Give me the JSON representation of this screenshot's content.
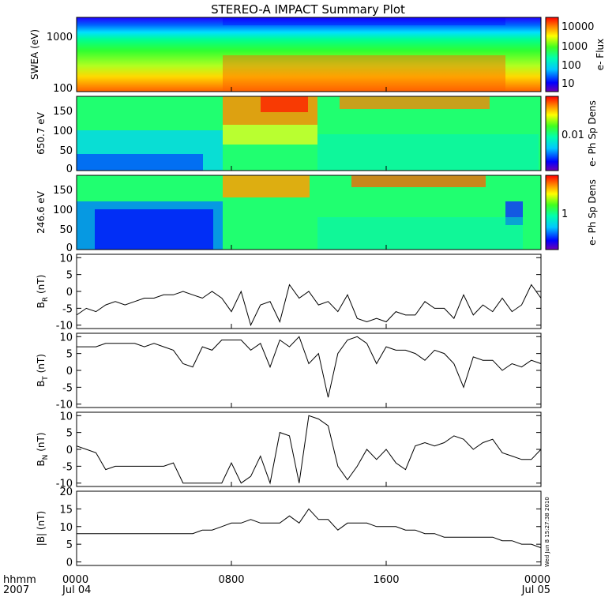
{
  "title": "STEREO-A IMPACT Summary Plot",
  "timestamp": "Wed Jun  8 15:27:38 2010",
  "x_axis": {
    "corner_labels": [
      "hhmm",
      "2007"
    ],
    "ticks": [
      {
        "hours": 0,
        "line1": "0000",
        "line2": "Jul 04"
      },
      {
        "hours": 8,
        "line1": "0800",
        "line2": ""
      },
      {
        "hours": 16,
        "line1": "1600",
        "line2": ""
      },
      {
        "hours": 24,
        "line1": "0000",
        "line2": "Jul 05"
      }
    ]
  },
  "colors": {
    "line": "#000000",
    "frame": "#000000",
    "background": "#ffffff"
  },
  "chart_data": [
    {
      "type": "heatmap",
      "ylabel": "SWEA (eV)",
      "ytick_labels": [
        "100",
        "1000"
      ],
      "y_scale": "log",
      "ylim": [
        90,
        2000
      ],
      "colorbar_label": "e- Flux",
      "colorbar_tick_labels": [
        "10",
        "100",
        "1000",
        "10000"
      ],
      "colorbar_scale": "log",
      "note": "electron energy spectrogram, jet colormap"
    },
    {
      "type": "heatmap",
      "ylabel": "650.7 eV",
      "ytick_labels": [
        "0",
        "50",
        "100",
        "150"
      ],
      "ylim": [
        -5,
        180
      ],
      "colorbar_label": "e- Ph Sp Dens",
      "colorbar_tick_labels": [
        "0.01"
      ]
    },
    {
      "type": "heatmap",
      "ylabel": "246.6 eV",
      "ytick_labels": [
        "0",
        "50",
        "100",
        "150"
      ],
      "ylim": [
        -5,
        180
      ],
      "colorbar_label": "e- Ph Sp Dens",
      "colorbar_tick_labels": [
        "1"
      ]
    },
    {
      "type": "line",
      "ylabel": "B_R (nT)",
      "ylim": [
        -11,
        11
      ],
      "yticks": [
        -10,
        -5,
        0,
        5,
        10
      ],
      "x_hours": [
        0,
        0.5,
        1,
        1.5,
        2,
        2.5,
        3,
        3.5,
        4,
        4.5,
        5,
        5.5,
        6,
        6.5,
        7,
        7.5,
        8,
        8.5,
        9,
        9.5,
        10,
        10.5,
        11,
        11.5,
        12,
        12.5,
        13,
        13.5,
        14,
        14.5,
        15,
        15.5,
        16,
        16.5,
        17,
        17.5,
        18,
        18.5,
        19,
        19.5,
        20,
        20.5,
        21,
        21.5,
        22,
        22.5,
        23,
        23.5,
        24
      ],
      "values": [
        -7,
        -5,
        -6,
        -4,
        -3,
        -4,
        -3,
        -2,
        -2,
        -1,
        -1,
        0,
        -1,
        -2,
        0,
        -2,
        -6,
        0,
        -10,
        -4,
        -3,
        -9,
        2,
        -2,
        0,
        -4,
        -3,
        -6,
        -1,
        -8,
        -9,
        -8,
        -9,
        -6,
        -7,
        -7,
        -3,
        -5,
        -5,
        -8,
        -1,
        -7,
        -4,
        -6,
        -2,
        -6,
        -4,
        2,
        -2
      ]
    },
    {
      "type": "line",
      "ylabel": "B_T (nT)",
      "ylim": [
        -11,
        11
      ],
      "yticks": [
        -10,
        -5,
        0,
        5,
        10
      ],
      "x_hours": [
        0,
        0.5,
        1,
        1.5,
        2,
        2.5,
        3,
        3.5,
        4,
        4.5,
        5,
        5.5,
        6,
        6.5,
        7,
        7.5,
        8,
        8.5,
        9,
        9.5,
        10,
        10.5,
        11,
        11.5,
        12,
        12.5,
        13,
        13.5,
        14,
        14.5,
        15,
        15.5,
        16,
        16.5,
        17,
        17.5,
        18,
        18.5,
        19,
        19.5,
        20,
        20.5,
        21,
        21.5,
        22,
        22.5,
        23,
        23.5,
        24
      ],
      "values": [
        7,
        7,
        7,
        8,
        8,
        8,
        8,
        7,
        8,
        7,
        6,
        2,
        1,
        7,
        6,
        9,
        9,
        9,
        6,
        8,
        1,
        9,
        7,
        10,
        2,
        5,
        -8,
        5,
        9,
        10,
        8,
        2,
        7,
        6,
        6,
        5,
        3,
        6,
        5,
        2,
        -5,
        4,
        3,
        3,
        0,
        2,
        1,
        3,
        2
      ]
    },
    {
      "type": "line",
      "ylabel": "B_N (nT)",
      "ylim": [
        -11,
        11
      ],
      "yticks": [
        -10,
        -5,
        0,
        5,
        10
      ],
      "x_hours": [
        0,
        0.5,
        1,
        1.5,
        2,
        2.5,
        3,
        3.5,
        4,
        4.5,
        5,
        5.5,
        6,
        6.5,
        7,
        7.5,
        8,
        8.5,
        9,
        9.5,
        10,
        10.5,
        11,
        11.5,
        12,
        12.5,
        13,
        13.5,
        14,
        14.5,
        15,
        15.5,
        16,
        16.5,
        17,
        17.5,
        18,
        18.5,
        19,
        19.5,
        20,
        20.5,
        21,
        21.5,
        22,
        22.5,
        23,
        23.5,
        24
      ],
      "values": [
        1,
        0,
        -1,
        -6,
        -5,
        -5,
        -5,
        -5,
        -5,
        -5,
        -4,
        -10,
        -10,
        -10,
        -10,
        -10,
        -4,
        -10,
        -8,
        -2,
        -10,
        5,
        4,
        -10,
        10,
        9,
        7,
        -5,
        -9,
        -5,
        0,
        -3,
        0,
        -4,
        -6,
        1,
        2,
        1,
        2,
        4,
        3,
        0,
        2,
        3,
        -1,
        -2,
        -3,
        -3,
        0
      ]
    },
    {
      "type": "line",
      "ylabel": "|B| (nT)",
      "ylim": [
        -1,
        20
      ],
      "yticks": [
        0,
        5,
        10,
        15,
        20
      ],
      "x_hours": [
        0,
        0.5,
        1,
        1.5,
        2,
        2.5,
        3,
        3.5,
        4,
        4.5,
        5,
        5.5,
        6,
        6.5,
        7,
        7.5,
        8,
        8.5,
        9,
        9.5,
        10,
        10.5,
        11,
        11.5,
        12,
        12.5,
        13,
        13.5,
        14,
        14.5,
        15,
        15.5,
        16,
        16.5,
        17,
        17.5,
        18,
        18.5,
        19,
        19.5,
        20,
        20.5,
        21,
        21.5,
        22,
        22.5,
        23,
        23.5,
        24
      ],
      "values": [
        8,
        8,
        8,
        8,
        8,
        8,
        8,
        8,
        8,
        8,
        8,
        8,
        8,
        9,
        9,
        10,
        11,
        11,
        12,
        11,
        11,
        11,
        13,
        11,
        15,
        12,
        12,
        9,
        11,
        11,
        11,
        10,
        10,
        10,
        9,
        9,
        8,
        8,
        7,
        7,
        7,
        7,
        7,
        7,
        6,
        6,
        5,
        5,
        4
      ]
    }
  ]
}
